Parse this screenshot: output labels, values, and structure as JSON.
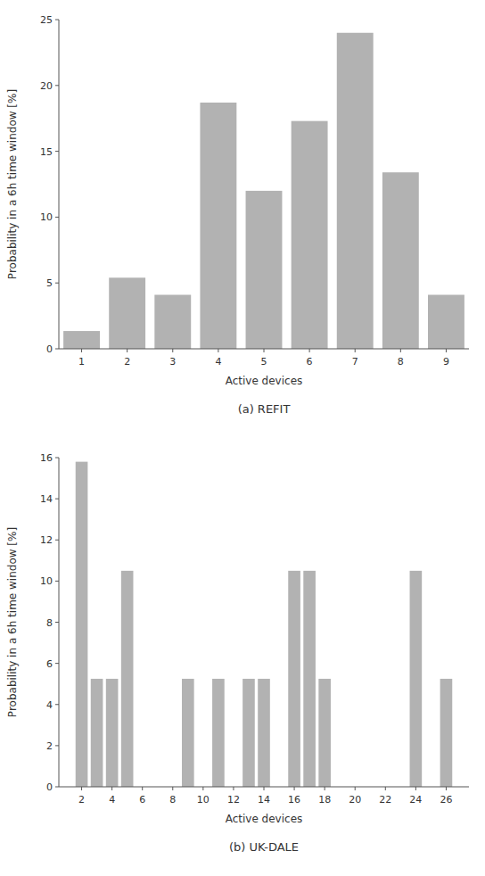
{
  "chart_data": [
    {
      "type": "bar",
      "title": "(a) REFIT",
      "x": [
        1,
        2,
        3,
        4,
        5,
        6,
        7,
        8,
        9
      ],
      "values": [
        1.35,
        5.4,
        4.1,
        18.7,
        12.0,
        17.3,
        24.0,
        13.4,
        4.1
      ],
      "color": "#b2b2b2",
      "xlim": [
        0.5,
        9.5
      ],
      "xticks": [
        1,
        2,
        3,
        4,
        5,
        6,
        7,
        8,
        9
      ],
      "ylim": [
        0,
        25
      ],
      "yticks": [
        0,
        5,
        10,
        15,
        20,
        25
      ],
      "xlabel": "Active devices",
      "ylabel": "Probability in a 6h time window [%]",
      "grid": false
    },
    {
      "type": "bar",
      "title": "(b) UK-DALE",
      "x": [
        2,
        3,
        4,
        5,
        9,
        11,
        13,
        14,
        16,
        17,
        18,
        24,
        26
      ],
      "values": [
        15.8,
        5.25,
        5.25,
        10.5,
        5.25,
        5.25,
        5.25,
        5.25,
        10.5,
        10.5,
        5.25,
        10.5,
        5.25
      ],
      "color": "#b2b2b2",
      "xlim": [
        0.5,
        27.5
      ],
      "xticks": [
        2,
        4,
        6,
        8,
        10,
        12,
        14,
        16,
        18,
        20,
        22,
        24,
        26
      ],
      "ylim": [
        0,
        16
      ],
      "yticks": [
        0,
        2,
        4,
        6,
        8,
        10,
        12,
        14,
        16
      ],
      "xlabel": "Active devices",
      "ylabel": "Probability in a 6h time window [%]",
      "grid": false
    }
  ]
}
